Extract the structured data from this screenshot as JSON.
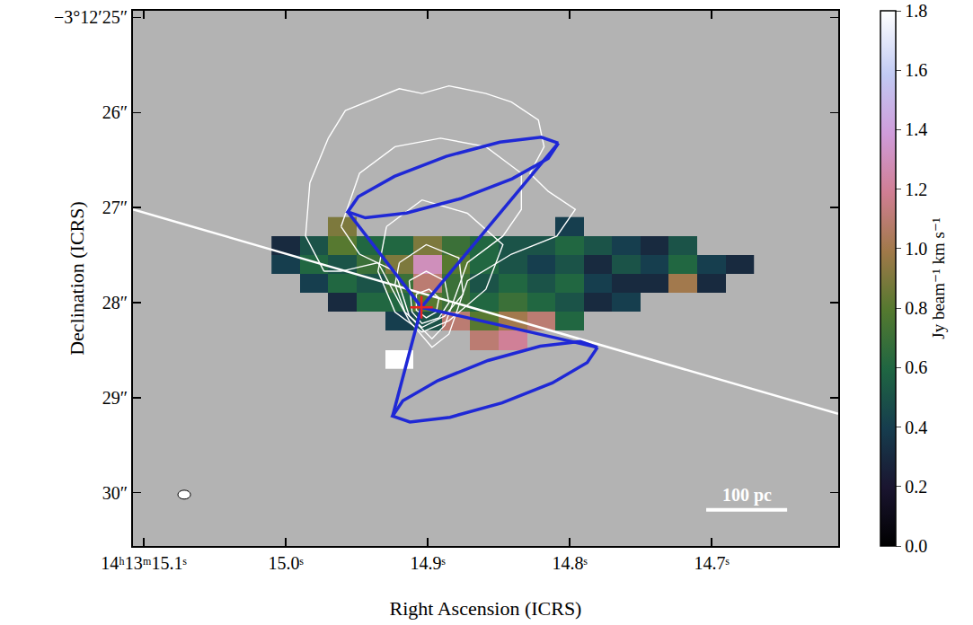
{
  "chart_data": {
    "type": "heatmap",
    "x_label": "Right Ascension (ICRS)",
    "y_label": "Declination (ICRS)",
    "xlim": [
      15.1076,
      14.6108
    ],
    "ylim": [
      30.56,
      24.93
    ],
    "xticks": [
      {
        "value": 15.1,
        "label": "14ʰ13ᵐ15.1ˢ"
      },
      {
        "value": 15.0,
        "label": "15.0ˢ"
      },
      {
        "value": 14.9,
        "label": "14.9ˢ"
      },
      {
        "value": 14.8,
        "label": "14.8ˢ"
      },
      {
        "value": 14.7,
        "label": "14.7ˢ"
      }
    ],
    "yticks": [
      {
        "value": 25,
        "label": "−3°12′25″"
      },
      {
        "value": 26,
        "label": "26″"
      },
      {
        "value": 27,
        "label": "27″"
      },
      {
        "value": 28,
        "label": "28″"
      },
      {
        "value": 29,
        "label": "29″"
      },
      {
        "value": 30,
        "label": "30″"
      }
    ],
    "grid": false,
    "heatmap": {
      "x": [
        15.0,
        14.98,
        14.96,
        14.94,
        14.92,
        14.9,
        14.88,
        14.86,
        14.84,
        14.82,
        14.8,
        14.78,
        14.76,
        14.74,
        14.72,
        14.7,
        14.68
      ],
      "y": [
        27.2,
        27.4,
        27.6,
        27.8,
        28.0,
        28.2,
        28.4,
        28.6
      ],
      "z": [
        [
          null,
          null,
          0.9,
          null,
          null,
          null,
          null,
          null,
          null,
          null,
          0.4,
          null,
          null,
          null,
          null,
          null,
          null
        ],
        [
          0.3,
          0.5,
          0.8,
          0.6,
          0.6,
          0.9,
          0.7,
          0.6,
          0.5,
          0.5,
          0.6,
          0.5,
          0.4,
          0.3,
          0.5,
          null,
          null
        ],
        [
          0.4,
          0.6,
          0.5,
          0.7,
          0.9,
          1.3,
          0.8,
          0.6,
          0.5,
          0.4,
          0.5,
          0.3,
          0.5,
          0.4,
          0.6,
          0.4,
          0.3
        ],
        [
          null,
          0.4,
          0.6,
          0.5,
          0.7,
          1.1,
          0.7,
          0.5,
          0.6,
          0.5,
          0.6,
          0.4,
          0.3,
          0.3,
          1.0,
          0.3,
          null
        ],
        [
          null,
          null,
          0.3,
          0.6,
          0.6,
          0.8,
          0.7,
          0.6,
          0.7,
          0.6,
          0.5,
          0.3,
          0.4,
          null,
          null,
          null,
          null
        ],
        [
          null,
          null,
          null,
          null,
          0.4,
          0.5,
          1.1,
          0.8,
          1.0,
          1.1,
          0.6,
          null,
          null,
          null,
          null,
          null,
          null
        ],
        [
          null,
          null,
          null,
          null,
          null,
          null,
          null,
          1.1,
          1.2,
          null,
          null,
          null,
          null,
          null,
          null,
          null,
          null
        ],
        [
          null,
          null,
          null,
          null,
          1.8,
          null,
          null,
          null,
          null,
          null,
          null,
          null,
          null,
          null,
          null,
          null,
          null
        ]
      ],
      "zlim": [
        0,
        1.8
      ],
      "zticks": [
        {
          "value": 0,
          "label": "0.0"
        },
        {
          "value": 0.2,
          "label": "0.2"
        },
        {
          "value": 0.4,
          "label": "0.4"
        },
        {
          "value": 0.6,
          "label": "0.6"
        },
        {
          "value": 0.8,
          "label": "0.8"
        },
        {
          "value": 1.0,
          "label": "1.0"
        },
        {
          "value": 1.2,
          "label": "1.2"
        },
        {
          "value": 1.4,
          "label": "1.4"
        },
        {
          "value": 1.6,
          "label": "1.6"
        },
        {
          "value": 1.8,
          "label": "1.8"
        }
      ],
      "colorbar_title": "Jy beam⁻¹ km s⁻¹"
    },
    "contours": {
      "color": "#ffffff",
      "lines": [
        {
          "x": [
            14.973,
            14.986,
            14.983,
            14.97,
            14.958,
            14.935,
            14.92,
            14.904,
            14.885,
            14.859,
            14.841,
            14.822,
            14.818,
            14.828,
            14.815,
            14.796,
            14.809,
            14.841,
            14.872,
            14.885,
            14.897,
            14.913,
            14.935,
            14.961
          ],
          "y": [
            27.67,
            27.3,
            26.74,
            26.27,
            25.98,
            25.84,
            25.75,
            25.8,
            25.72,
            25.8,
            25.89,
            26.08,
            26.36,
            26.64,
            26.83,
            27.02,
            27.3,
            27.49,
            27.77,
            28.33,
            28.47,
            28.19,
            27.58,
            27.67
          ]
        },
        {
          "x": [
            14.961,
            14.948,
            14.923,
            14.891,
            14.859,
            14.834,
            14.834,
            14.847,
            14.872,
            14.888,
            14.897,
            14.913,
            14.923,
            14.948
          ],
          "y": [
            27.2,
            26.64,
            26.36,
            26.27,
            26.36,
            26.64,
            27.02,
            27.3,
            27.58,
            28.24,
            28.38,
            28.14,
            27.67,
            27.49
          ]
        },
        {
          "x": [
            14.929,
            14.904,
            14.872,
            14.847,
            14.859,
            14.885,
            14.904,
            14.923,
            14.935
          ],
          "y": [
            27.2,
            26.92,
            27.06,
            27.39,
            27.86,
            28.19,
            28.31,
            28.1,
            27.67
          ]
        },
        {
          "x": [
            14.92,
            14.901,
            14.878,
            14.875,
            14.888,
            14.904,
            14.916,
            14.923
          ],
          "y": [
            27.58,
            27.39,
            27.53,
            27.91,
            28.14,
            28.26,
            28.1,
            27.81
          ]
        },
        {
          "x": [
            14.913,
            14.901,
            14.888,
            14.885,
            14.892,
            14.904,
            14.911
          ],
          "y": [
            27.77,
            27.67,
            27.77,
            28.0,
            28.16,
            28.22,
            28.1
          ]
        },
        {
          "x": [
            14.908,
            14.899,
            14.892,
            14.894,
            14.901,
            14.908
          ],
          "y": [
            27.91,
            27.86,
            27.95,
            28.1,
            28.16,
            28.08
          ]
        }
      ]
    },
    "cone": {
      "color": "#1f28d6",
      "apex": {
        "x": 14.9044,
        "y": 28.049
      },
      "ellipses": [
        {
          "x": [
            14.808,
            14.8151,
            14.8405,
            14.877,
            14.9149,
            14.9439,
            14.9563,
            14.9489,
            14.9234,
            14.8869,
            14.8491,
            14.82
          ],
          "y": [
            26.323,
            26.483,
            26.697,
            26.907,
            27.058,
            27.108,
            27.045,
            26.885,
            26.672,
            26.461,
            26.311,
            26.26
          ]
        },
        {
          "x": [
            14.7804,
            14.7876,
            14.8122,
            14.8476,
            14.8843,
            14.9125,
            14.9247,
            14.9175,
            14.8928,
            14.8575,
            14.8207,
            14.7925
          ],
          "y": [
            28.471,
            28.631,
            28.845,
            29.055,
            29.206,
            29.256,
            29.193,
            29.033,
            28.82,
            28.609,
            28.459,
            28.408
          ]
        }
      ],
      "edges": [
        {
          "x": 14.808,
          "y": 26.323
        },
        {
          "x": 14.9563,
          "y": 27.045
        },
        {
          "x": 14.7804,
          "y": 28.471
        },
        {
          "x": 14.9247,
          "y": 29.193
        }
      ]
    },
    "center": {
      "x": 14.9044,
      "y": 28.049,
      "color": "#e8251f",
      "marker": "cross"
    },
    "line": {
      "x": [
        15.1076,
        14.6108
      ],
      "y": [
        27.02,
        29.17
      ],
      "color": "#ffffff"
    },
    "beam": {
      "x": 15.0715,
      "y": 30.02,
      "width": 0.0089,
      "height": 0.094,
      "color": "#ffffff"
    },
    "scale_bar": {
      "label": "100 pc",
      "x": [
        14.7038,
        14.6468
      ],
      "y": 30.18,
      "color": "#ffffff"
    }
  }
}
